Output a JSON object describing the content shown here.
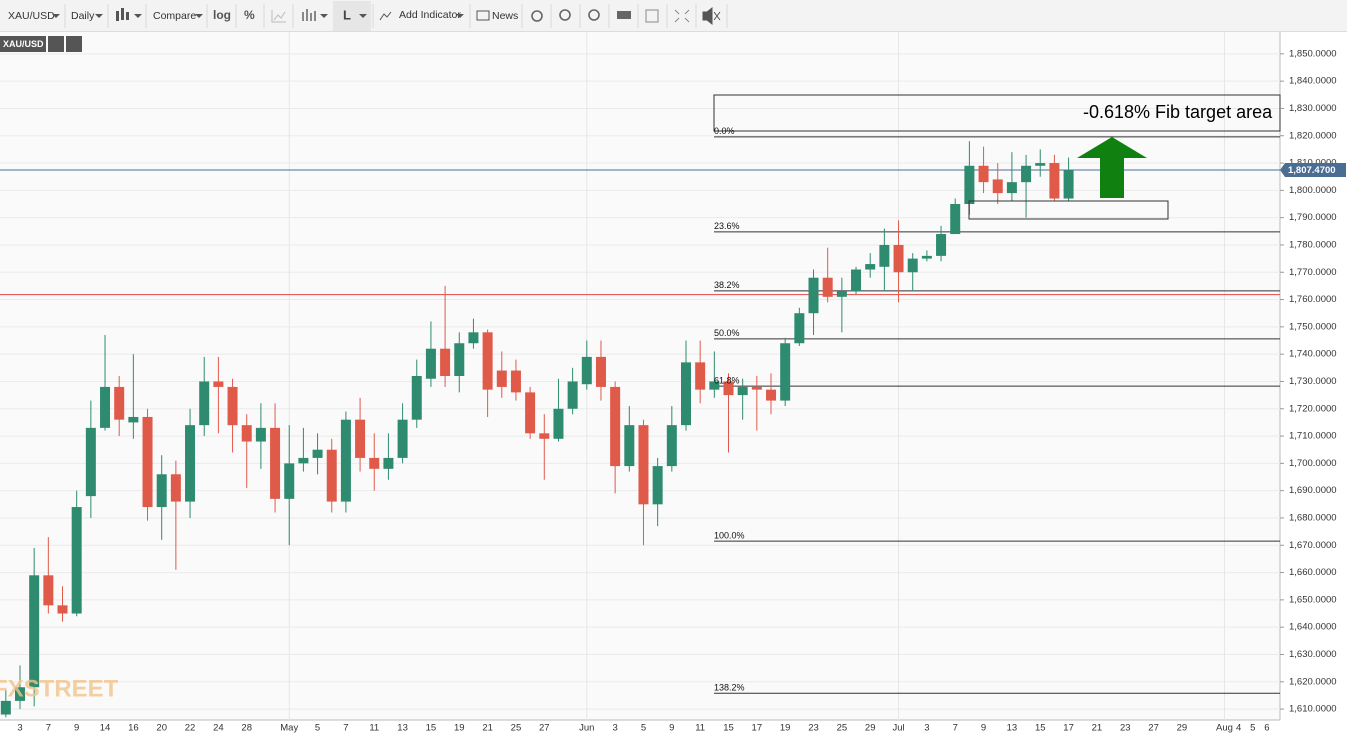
{
  "toolbar": {
    "symbol": "XAU/USD",
    "interval": "Daily",
    "compare": "Compare",
    "log": "log",
    "percent": "%",
    "layout": "L",
    "add_indicator": "Add Indicator",
    "news": "News"
  },
  "chart_data": {
    "type": "candlestick",
    "symbol": "XAU/USD",
    "watermark": "FXSTREET",
    "annotation": "-0.618% Fib target area",
    "categories": [
      null,
      "3",
      null,
      "7",
      null,
      "9",
      null,
      "14",
      null,
      "16",
      null,
      "20",
      null,
      "22",
      null,
      "24",
      null,
      "28",
      null,
      null,
      "May",
      null,
      "5",
      null,
      "7",
      null,
      "11",
      null,
      "13",
      null,
      "15",
      null,
      "19",
      null,
      "21",
      null,
      "25",
      null,
      "27",
      null,
      null,
      "Jun",
      null,
      "3",
      null,
      "5",
      null,
      "9",
      null,
      "11",
      null,
      "15",
      null,
      "17",
      null,
      "19",
      null,
      "23",
      null,
      "25",
      null,
      "29",
      null,
      "Jul",
      null,
      "3",
      null,
      "7",
      null,
      "9",
      null,
      "13",
      null,
      "15",
      null,
      "17",
      null,
      "21",
      null,
      "23",
      null,
      "27",
      null,
      "29",
      null,
      null,
      "Aug",
      "4",
      "5",
      "6"
    ],
    "open": [
      1608,
      1613,
      1618,
      1659,
      1648,
      1645,
      1688,
      1713,
      1728,
      1715,
      1717,
      1684,
      1696,
      1686,
      1714,
      1730,
      1728,
      1714,
      1708,
      1713,
      1687,
      1700,
      1702,
      1705,
      1686,
      1716,
      1702,
      1698,
      1702,
      1716,
      1731,
      1742,
      1732,
      1744,
      1748,
      1734,
      1734,
      1726,
      1711,
      1709,
      1720,
      1729,
      1739,
      1728,
      1699,
      1714,
      1685,
      1699,
      1714,
      1737,
      1727,
      1730,
      1725,
      1728,
      1727,
      1723,
      1744,
      1755,
      1768,
      1761,
      1763,
      1771,
      1772,
      1780,
      1770,
      1775,
      1776,
      1784,
      1795,
      1809,
      1804,
      1799,
      1803,
      1809,
      1810,
      1797,
      null,
      null,
      null,
      null,
      null,
      null,
      null,
      null,
      null,
      null,
      null,
      null,
      null,
      null
    ],
    "high": [
      1617,
      1626,
      1669,
      1673,
      1655,
      1690,
      1723,
      1747,
      1732,
      1740,
      1720,
      1703,
      1701,
      1720,
      1739,
      1739,
      1731,
      1718,
      1722,
      1722,
      1714,
      1713,
      1711,
      1709,
      1719,
      1724,
      1711,
      1711,
      1722,
      1738,
      1752,
      1765,
      1748,
      1753,
      1749,
      1741,
      1738,
      1728,
      1718,
      1731,
      1735,
      1745,
      1745,
      1730,
      1721,
      1716,
      1702,
      1721,
      1745,
      1745,
      1741,
      1733,
      1731,
      1732,
      1733,
      1746,
      1757,
      1771,
      1779,
      1768,
      1772,
      1777,
      1786,
      1789,
      1777,
      1778,
      1787,
      1797,
      1818,
      1816,
      1810,
      1814,
      1813,
      1815,
      1813,
      1812,
      null,
      null,
      null,
      null,
      null,
      null,
      null,
      null,
      null,
      null,
      null,
      null,
      null,
      null
    ],
    "low": [
      1607,
      1610,
      1611,
      1645,
      1642,
      1644,
      1680,
      1712,
      1710,
      1709,
      1679,
      1672,
      1661,
      1680,
      1710,
      1711,
      1704,
      1691,
      1698,
      1682,
      1670,
      1697,
      1696,
      1682,
      1682,
      1697,
      1690,
      1694,
      1700,
      1713,
      1728,
      1728,
      1726,
      1742,
      1717,
      1724,
      1723,
      1709,
      1694,
      1708,
      1718,
      1727,
      1723,
      1689,
      1697,
      1670,
      1677,
      1697,
      1712,
      1722,
      1724,
      1704,
      1716,
      1712,
      1718,
      1721,
      1743,
      1747,
      1759,
      1748,
      1762,
      1768,
      1763,
      1759,
      1763,
      1774,
      1774,
      1784,
      1791,
      1799,
      1795,
      1796,
      1790,
      1805,
      1796,
      1796,
      null,
      null,
      null,
      null,
      null,
      null,
      null,
      null,
      null,
      null,
      null,
      null,
      null,
      null
    ],
    "close": [
      1613,
      1618,
      1659,
      1648,
      1645,
      1684,
      1713,
      1728,
      1716,
      1717,
      1684,
      1696,
      1686,
      1714,
      1730,
      1728,
      1714,
      1708,
      1713,
      1687,
      1700,
      1702,
      1705,
      1686,
      1716,
      1702,
      1698,
      1702,
      1716,
      1732,
      1742,
      1732,
      1744,
      1748,
      1727,
      1728,
      1726,
      1711,
      1709,
      1720,
      1730,
      1739,
      1728,
      1699,
      1714,
      1685,
      1699,
      1714,
      1737,
      1727,
      1730,
      1725,
      1728,
      1727,
      1723,
      1744,
      1755,
      1768,
      1761,
      1763,
      1771,
      1773,
      1780,
      1770,
      1775,
      1776,
      1784,
      1795,
      1809,
      1803,
      1799,
      1803,
      1809,
      1810,
      1797,
      1807.47,
      null,
      null,
      null,
      null,
      null,
      null,
      null,
      null,
      null,
      null,
      null,
      null,
      null,
      null
    ],
    "up_color": "#2e8b6f",
    "down_color": "#e05a4a",
    "ylim": [
      1606,
      1858
    ],
    "yticks": [
      {
        "value": 1850,
        "label": "1,850.0000"
      },
      {
        "value": 1840,
        "label": "1,840.0000"
      },
      {
        "value": 1830,
        "label": "1,830.0000"
      },
      {
        "value": 1820,
        "label": "1,820.0000"
      },
      {
        "value": 1810,
        "label": "1,810.0000"
      },
      {
        "value": 1800,
        "label": "1,800.0000"
      },
      {
        "value": 1790,
        "label": "1,790.0000"
      },
      {
        "value": 1780,
        "label": "1,780.0000"
      },
      {
        "value": 1770,
        "label": "1,770.0000"
      },
      {
        "value": 1760,
        "label": "1,760.0000"
      },
      {
        "value": 1750,
        "label": "1,750.0000"
      },
      {
        "value": 1740,
        "label": "1,740.0000"
      },
      {
        "value": 1730,
        "label": "1,730.0000"
      },
      {
        "value": 1720,
        "label": "1,720.0000"
      },
      {
        "value": 1710,
        "label": "1,710.0000"
      },
      {
        "value": 1700,
        "label": "1,700.0000"
      },
      {
        "value": 1690,
        "label": "1,690.0000"
      },
      {
        "value": 1680,
        "label": "1,680.0000"
      },
      {
        "value": 1670,
        "label": "1,670.0000"
      },
      {
        "value": 1660,
        "label": "1,660.0000"
      },
      {
        "value": 1650,
        "label": "1,650.0000"
      },
      {
        "value": 1640,
        "label": "1,640.0000"
      },
      {
        "value": 1630,
        "label": "1,630.0000"
      },
      {
        "value": 1620,
        "label": "1,620.0000"
      },
      {
        "value": 1610,
        "label": "1,610.0000"
      }
    ],
    "grid": true,
    "last_price": {
      "value": 1807.47,
      "label": "1,807.4700",
      "color": "#4a6d94"
    },
    "horizontal_line": {
      "value": 1761.8,
      "color": "#e04848"
    },
    "fib_levels": [
      {
        "label": "0.0%",
        "value": 1819.6
      },
      {
        "label": "23.6%",
        "value": 1784.8
      },
      {
        "label": "38.2%",
        "value": 1763.2
      },
      {
        "label": "50.0%",
        "value": 1745.6
      },
      {
        "label": "61.8%",
        "value": 1728.3
      },
      {
        "label": "100.0%",
        "value": 1671.5
      },
      {
        "label": "138.2%",
        "value": 1615.8
      }
    ]
  }
}
